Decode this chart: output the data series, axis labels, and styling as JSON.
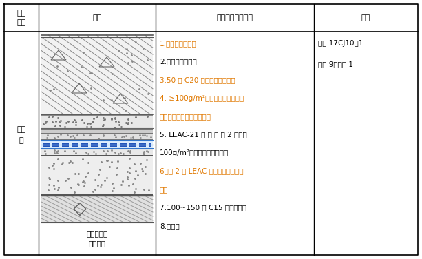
{
  "col1_header": "构造\n编号",
  "col2_header": "简图",
  "col3_header": "地下底板构造做法",
  "col4_header": "备注",
  "col1_content": "底板\n三",
  "col2_caption": "底板外防水\n（二级）",
  "col3_lines": [
    {
      "text": "1.面层见具体工程",
      "color": "#e07800"
    },
    {
      "text": "2.防水混凝土底板",
      "color": "#000000"
    },
    {
      "text": "3.50 厚 C20 细石混凝土保护层",
      "color": "#e07800"
    },
    {
      "text": "4. ≥100g/m²聚脂长丝无防布单面",
      "color": "#e07800"
    },
    {
      "text": "下粘接的隔离层（下粘接）",
      "color": "#e07800"
    },
    {
      "text": "5. LEAC-21 防 水 层 ， 2 厚内置",
      "color": "#000000"
    },
    {
      "text": "100g/m²聚酯长丝增强胎体，",
      "color": "#000000"
    },
    {
      "text": "6最薄 2 厚 LEAC 聚合物水泥砂浆找",
      "color": "#e07800"
    },
    {
      "text": "平层",
      "color": "#e07800"
    },
    {
      "text": "7.100~150 厚 C15 混凝土垫层",
      "color": "#000000"
    },
    {
      "text": "8.地基土",
      "color": "#000000"
    }
  ],
  "col4_lines": [
    {
      "text": "参见 17CJ10－1",
      "color": "#000000"
    },
    {
      "text": "图集 9页底板 1",
      "color": "#000000"
    }
  ],
  "bg_color": "#ffffff",
  "border_color": "#000000",
  "figsize": [
    6.13,
    3.76
  ],
  "dpi": 100
}
